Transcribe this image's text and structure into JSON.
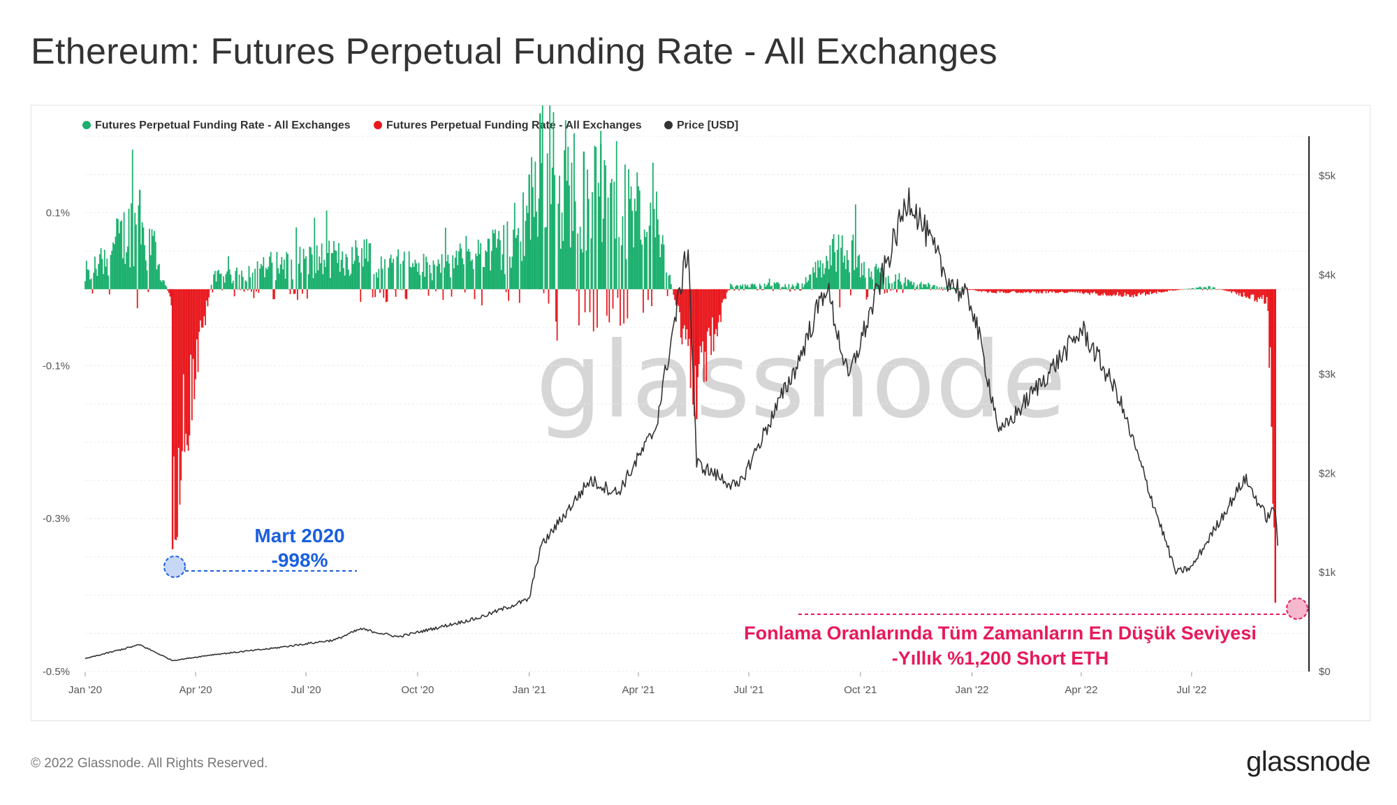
{
  "title": "Ethereum: Futures Perpetual Funding Rate - All Exchanges",
  "footer": {
    "copyright": "© 2022 Glassnode. All Rights Reserved.",
    "logo_text": "glassnode"
  },
  "watermark": "glassnode",
  "colors": {
    "positive": "#1aaf6c",
    "negative": "#e8191e",
    "price": "#333333",
    "annotation_blue": "#1a5fe0",
    "annotation_pink": "#e8195a"
  },
  "annotations": {
    "march2020_line1": "Mart 2020",
    "march2020_line2": "-998%",
    "ath_low_line1": "Fonlama Oranlarında Tüm Zamanların En Düşük Seviyesi",
    "ath_low_line2": "-Yıllık %1,200 Short ETH"
  },
  "chart_data": {
    "type": "bar",
    "title": "Ethereum: Futures Perpetual Funding Rate - All Exchanges",
    "legend": [
      {
        "name": "Futures Perpetual Funding Rate - All Exchanges",
        "color": "#1aaf6c"
      },
      {
        "name": "Futures Perpetual Funding Rate - All Exchanges",
        "color": "#e8191e"
      },
      {
        "name": "Price [USD]",
        "color": "#333333"
      }
    ],
    "legend_position": "top-left",
    "x_ticks": [
      "Jan '20",
      "Apr '20",
      "Jul '20",
      "Oct '20",
      "Jan '21",
      "Apr '21",
      "Jul '21",
      "Oct '21",
      "Jan '22",
      "Apr '22",
      "Jul '22"
    ],
    "x_range": [
      "2020-01-01",
      "2022-09-30"
    ],
    "y_left_ticks": [
      "0.1%",
      "-0.1%",
      "-0.3%",
      "-0.5%"
    ],
    "y_left_range": [
      -0.5,
      0.2
    ],
    "y_right_ticks": [
      "$5k",
      "$4k",
      "$3k",
      "$2k",
      "$1k",
      "$0"
    ],
    "y_right_range": [
      0,
      5400
    ],
    "series": [
      {
        "name": "Futures Perpetual Funding Rate - All Exchanges",
        "axis": "left",
        "unit": "%",
        "x": [
          "2020-01-01",
          "2020-02-15",
          "2020-03-12",
          "2020-03-13",
          "2020-04-15",
          "2020-06-15",
          "2020-08-15",
          "2020-10-15",
          "2020-12-15",
          "2021-01-01",
          "2021-01-10",
          "2021-02-15",
          "2021-03-01",
          "2021-04-15",
          "2021-05-19",
          "2021-06-15",
          "2021-08-15",
          "2021-09-15",
          "2021-10-15",
          "2021-11-15",
          "2022-01-15",
          "2022-03-15",
          "2022-05-15",
          "2022-07-15",
          "2022-09-01",
          "2022-09-05",
          "2022-09-08"
        ],
        "values": [
          0.02,
          0.13,
          -0.02,
          -0.34,
          0.02,
          0.05,
          0.06,
          0.04,
          0.08,
          0.15,
          0.23,
          0.18,
          0.19,
          0.12,
          -0.17,
          0.005,
          0.01,
          0.08,
          0.03,
          0.01,
          -0.005,
          -0.005,
          -0.01,
          0.005,
          -0.02,
          -0.18,
          -0.41
        ]
      },
      {
        "name": "Price [USD]",
        "axis": "right",
        "unit": "USD",
        "x": [
          "2020-01-01",
          "2020-02-15",
          "2020-03-13",
          "2020-04-15",
          "2020-06-01",
          "2020-07-25",
          "2020-08-15",
          "2020-09-15",
          "2020-11-20",
          "2021-01-01",
          "2021-01-10",
          "2021-02-20",
          "2021-03-15",
          "2021-04-15",
          "2021-05-12",
          "2021-05-19",
          "2021-06-22",
          "2021-08-10",
          "2021-09-03",
          "2021-09-21",
          "2021-11-10",
          "2021-12-10",
          "2022-01-01",
          "2022-01-24",
          "2022-03-01",
          "2022-04-02",
          "2022-05-01",
          "2022-06-18",
          "2022-07-01",
          "2022-08-14",
          "2022-09-01",
          "2022-09-08",
          "2022-09-10"
        ],
        "values": [
          130,
          270,
          110,
          170,
          230,
          320,
          430,
          350,
          540,
          730,
          1250,
          1930,
          1800,
          2450,
          4300,
          2100,
          1850,
          3100,
          3900,
          2950,
          4800,
          4000,
          3700,
          2400,
          2950,
          3450,
          2800,
          1000,
          1050,
          1950,
          1550,
          1650,
          1300
        ]
      }
    ]
  }
}
